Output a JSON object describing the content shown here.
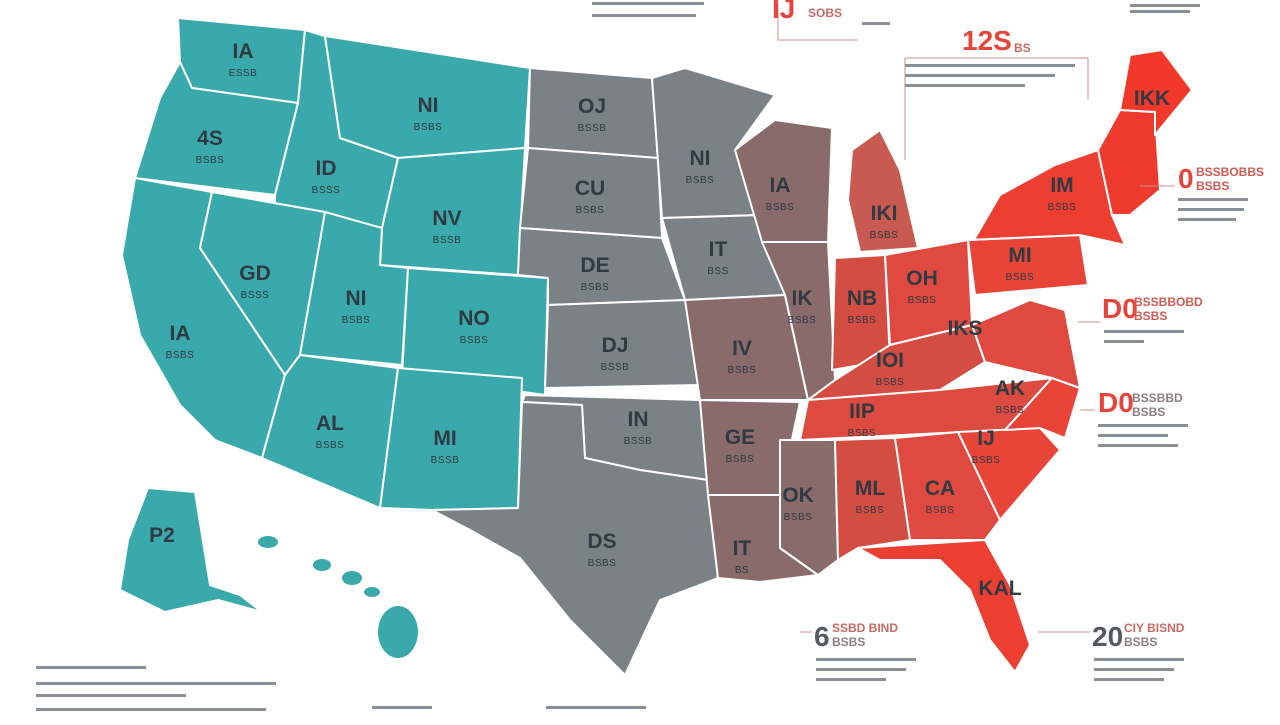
{
  "colors": {
    "west": "#3aa9ab",
    "central": "#7a8286",
    "south_central": "#8a6b6b",
    "east": "#e8453a",
    "background": "#ffffff"
  },
  "states": {
    "wa": {
      "code": "IA",
      "sub": "ESSB"
    },
    "or": {
      "code": "4S",
      "sub": "BSBS"
    },
    "ca": {
      "code": "IA",
      "sub": "BSBS"
    },
    "id": {
      "code": "ID",
      "sub": "BSSS"
    },
    "nv": {
      "code": "GD",
      "sub": "BSSS"
    },
    "mt": {
      "code": "NI",
      "sub": "BSBS"
    },
    "wy": {
      "code": "NV",
      "sub": "BSSB"
    },
    "ut": {
      "code": "NI",
      "sub": "BSBS"
    },
    "co": {
      "code": "NO",
      "sub": "BSBS"
    },
    "az": {
      "code": "AL",
      "sub": "BSBS"
    },
    "nm": {
      "code": "MI",
      "sub": "BSSB"
    },
    "nd": {
      "code": "OJ",
      "sub": "BSSB"
    },
    "sd": {
      "code": "CU",
      "sub": "BSBS"
    },
    "ne": {
      "code": "DE",
      "sub": "BSBS"
    },
    "ks": {
      "code": "DJ",
      "sub": "BSSB"
    },
    "ok": {
      "code": "IN",
      "sub": "BSSB"
    },
    "tx": {
      "code": "DS",
      "sub": "BSBS"
    },
    "mn": {
      "code": "NI",
      "sub": "BSBS"
    },
    "ia": {
      "code": "IT",
      "sub": "BSS"
    },
    "mo": {
      "code": "IV",
      "sub": "BSBS"
    },
    "ar": {
      "code": "GE",
      "sub": "BSBS"
    },
    "la": {
      "code": "IT",
      "sub": "BS"
    },
    "wi": {
      "code": "IA",
      "sub": "BSBS"
    },
    "il": {
      "code": "IK",
      "sub": "BSBS"
    },
    "mi": {
      "code": "IKI",
      "sub": "BSBS"
    },
    "in": {
      "code": "NB",
      "sub": "BSBS"
    },
    "oh": {
      "code": "OH",
      "sub": "BSBS"
    },
    "ky": {
      "code": "IOI",
      "sub": "BSBS"
    },
    "tn": {
      "code": "IIP",
      "sub": "BSBS"
    },
    "ms": {
      "code": "OK",
      "sub": "BSBS"
    },
    "al": {
      "code": "ML",
      "sub": "BSBS"
    },
    "ga": {
      "code": "CA",
      "sub": "BSBS"
    },
    "fl": {
      "code": "KAL",
      "sub": ""
    },
    "sc": {
      "code": "IJ",
      "sub": "BSBS"
    },
    "nc": {
      "code": "AK",
      "sub": "BSBS"
    },
    "va": {
      "code": "IKS",
      "sub": ""
    },
    "wv": {
      "code": "NB",
      "sub": ""
    },
    "pa": {
      "code": "MI",
      "sub": "BSBS"
    },
    "ny": {
      "code": "IM",
      "sub": "BSBS"
    },
    "me": {
      "code": "IKK",
      "sub": ""
    },
    "ak": {
      "code": "P2",
      "sub": ""
    }
  },
  "callouts": {
    "top1": {
      "num": "IJ",
      "label": "SOBS"
    },
    "top2": {
      "num": "12S",
      "label": "BS"
    },
    "east1": {
      "num": "0",
      "label": "BSSBOBBS",
      "sub": "BSBS"
    },
    "east2": {
      "num": "D0",
      "label": "BSSBBOBD",
      "sub": "BSBS"
    },
    "east3": {
      "num": "D0",
      "label": "BSSBBD",
      "sub": "BSBS"
    },
    "bottom1": {
      "num": "6",
      "label": "SSBD BIND",
      "sub": "BSBS"
    },
    "bottom2": {
      "num": "20",
      "label": "CIY BISND",
      "sub": "BSBS"
    }
  }
}
